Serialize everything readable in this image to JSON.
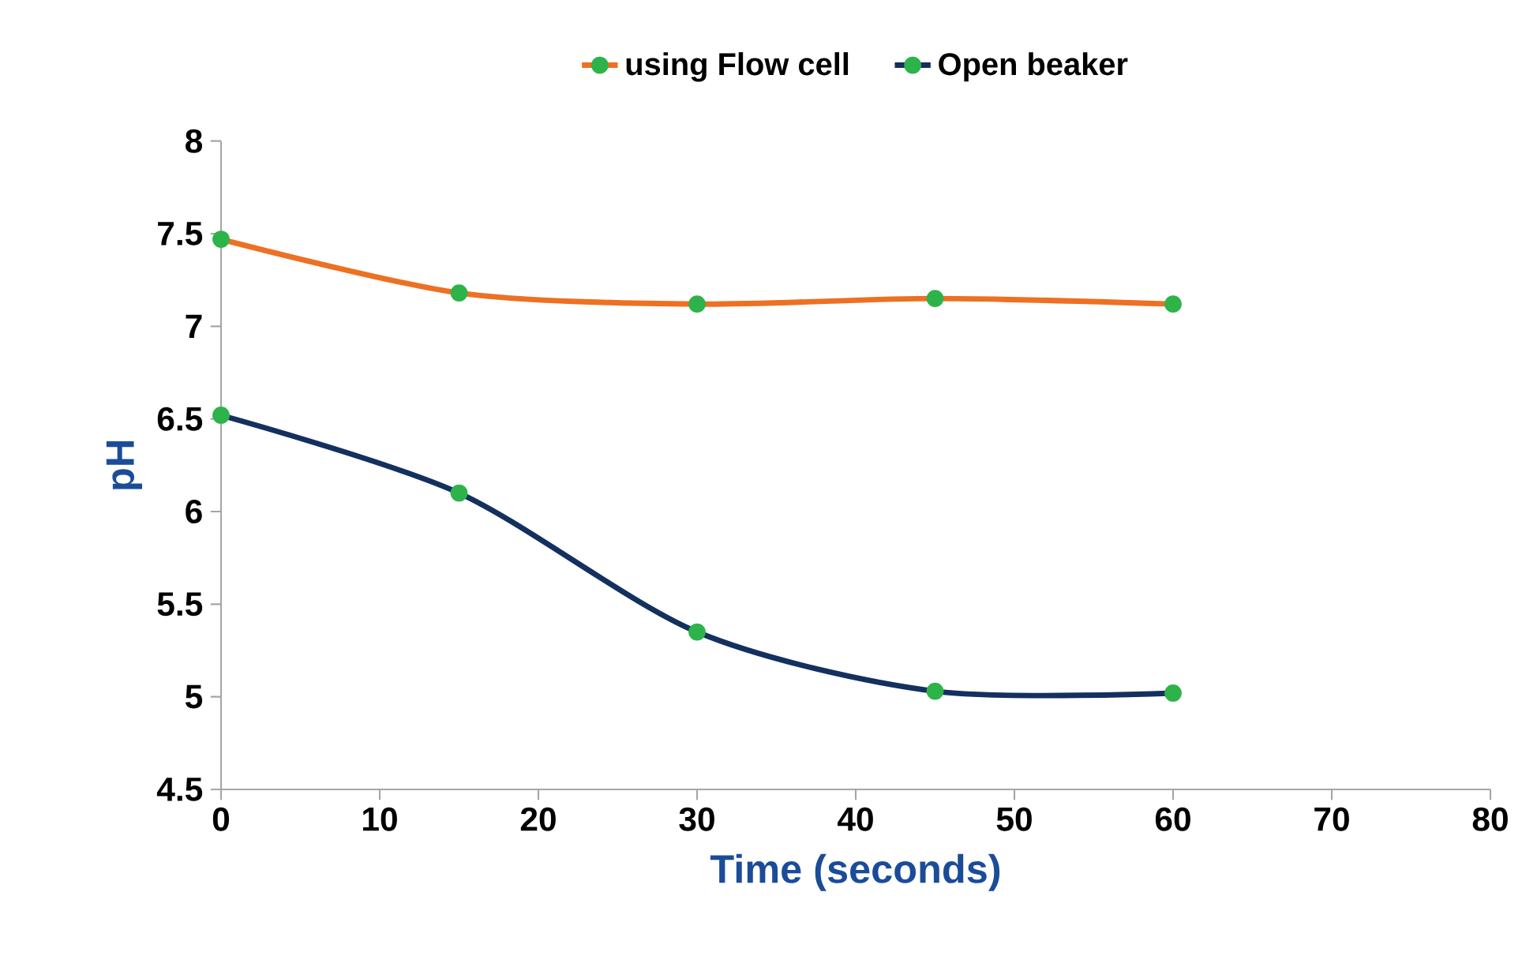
{
  "chart_data": {
    "type": "line",
    "xlabel": "Time (seconds)",
    "ylabel": "pH",
    "x": [
      0,
      15,
      30,
      45,
      60
    ],
    "series": [
      {
        "name": "using Flow cell",
        "color": "#ed7023",
        "values": [
          7.47,
          7.18,
          7.12,
          7.15,
          7.12
        ]
      },
      {
        "name": "Open beaker",
        "color": "#13305f",
        "values": [
          6.52,
          6.1,
          5.35,
          5.03,
          5.02
        ]
      }
    ],
    "xlim": [
      0,
      80
    ],
    "xticks": [
      0,
      10,
      20,
      30,
      40,
      50,
      60,
      70,
      80
    ],
    "ylim": [
      4.5,
      8
    ],
    "yticks": [
      4.5,
      5,
      5.5,
      6,
      6.5,
      7,
      7.5,
      8
    ],
    "grid": false,
    "legend": "top",
    "marker": "circle",
    "line_style": "solid"
  }
}
